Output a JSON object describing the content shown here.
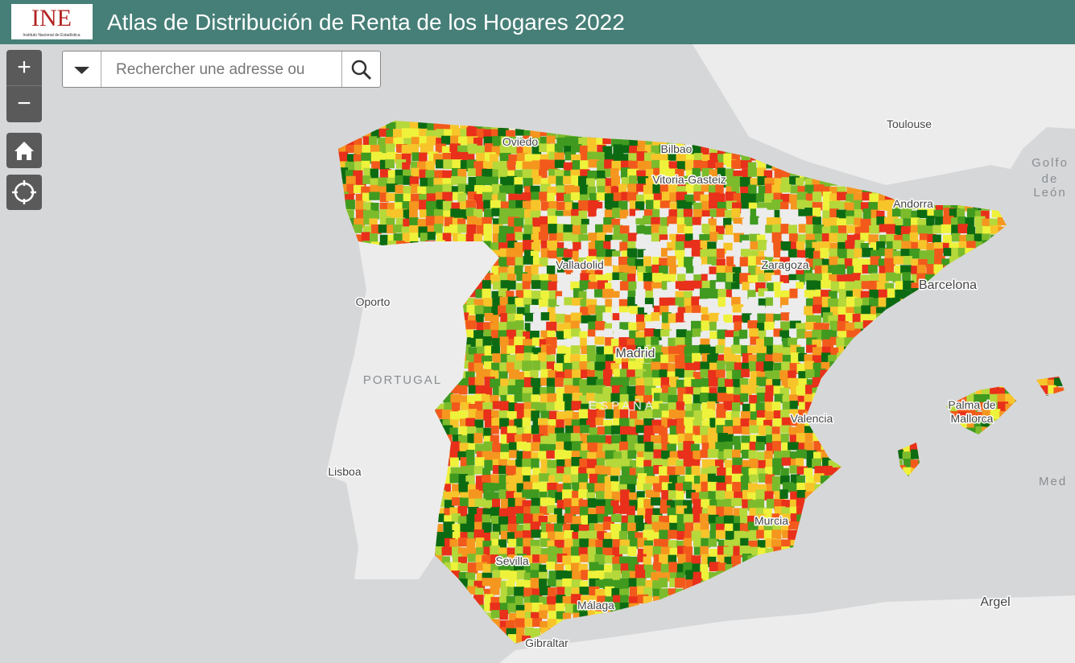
{
  "header": {
    "logo": "INE",
    "logo_subtitle": "Instituto Nacional de Estadística",
    "title": "Atlas de Distribución de Renta de los Hogares 2022"
  },
  "controls": {
    "zoom_in": "+",
    "zoom_out": "−",
    "search_placeholder": "Rechercher une adresse ou"
  },
  "map": {
    "labels": [
      "Toulouse",
      [
        "Golfo",
        "de",
        "León"
      ],
      "Oviedo",
      "Bilbao",
      "Vitoria-Gasteiz",
      "Andorra",
      "Valladolid",
      "Zaragoza",
      "Barcelona",
      "Oporto",
      "Madrid",
      "PORTUGAL",
      "ESPAÑA",
      "Valencia",
      [
        "Palma de",
        "Mallorca"
      ],
      "Lisboa",
      "Murcia",
      "Sevilla",
      "Málaga",
      "Gibraltar",
      "Argel",
      "Med"
    ]
  }
}
